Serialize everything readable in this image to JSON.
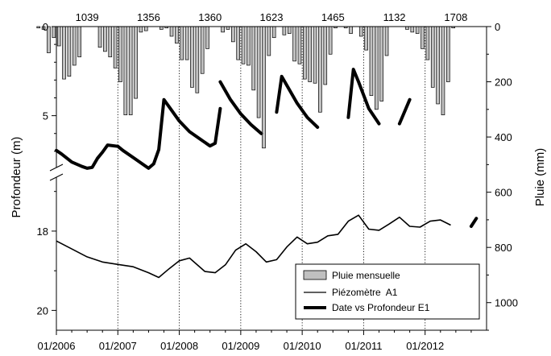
{
  "chart_data": {
    "type": "bar+line",
    "ylabel_left": "Profondeur (m)",
    "ylabel_right": "Pluie (mm)",
    "x_ticks": [
      "01/2006",
      "01/2007",
      "01/2008",
      "01/2009",
      "01/2010",
      "01/2011",
      "01/2012"
    ],
    "y_left_ticks_upper": [
      "0",
      "5"
    ],
    "y_left_ticks_lower": [
      "18",
      "20"
    ],
    "y_right_ticks": [
      "0",
      "200",
      "400",
      "600",
      "800",
      "1000"
    ],
    "y_left_range_upper": [
      0,
      8
    ],
    "y_left_range_lower": [
      16.6,
      20.5
    ],
    "y_right_range": [
      0,
      1100
    ],
    "annual_totals": [
      {
        "year": 2006,
        "value": "1039"
      },
      {
        "year": 2007,
        "value": "1356"
      },
      {
        "year": 2008,
        "value": "1360"
      },
      {
        "year": 2009,
        "value": "1623"
      },
      {
        "year": 2010,
        "value": "1465"
      },
      {
        "year": 2011,
        "value": "1132"
      },
      {
        "year": 2012,
        "value": "1708"
      }
    ],
    "series": [
      {
        "name": "Pluie mensuelle",
        "kind": "bar",
        "axis": "right",
        "color": "#c0c0c0",
        "x": [
          "2005-09",
          "2005-10",
          "2005-11",
          "2005-12",
          "2006-01",
          "2006-02",
          "2006-03",
          "2006-04",
          "2006-05",
          "2006-06",
          "2006-07",
          "2006-08",
          "2006-09",
          "2006-10",
          "2006-11",
          "2006-12",
          "2007-01",
          "2007-02",
          "2007-03",
          "2007-04",
          "2007-05",
          "2007-06",
          "2007-07",
          "2007-08",
          "2007-09",
          "2007-10",
          "2007-11",
          "2007-12",
          "2008-01",
          "2008-02",
          "2008-03",
          "2008-04",
          "2008-05",
          "2008-06",
          "2008-07",
          "2008-08",
          "2008-09",
          "2008-10",
          "2008-11",
          "2008-12",
          "2009-01",
          "2009-02",
          "2009-03",
          "2009-04",
          "2009-05",
          "2009-06",
          "2009-07",
          "2009-08",
          "2009-09",
          "2009-10",
          "2009-11",
          "2009-12",
          "2010-01",
          "2010-02",
          "2010-03",
          "2010-04",
          "2010-05",
          "2010-06",
          "2010-07",
          "2010-08",
          "2010-09",
          "2010-10",
          "2010-11",
          "2010-12",
          "2011-01",
          "2011-02",
          "2011-03",
          "2011-04",
          "2011-05",
          "2011-06",
          "2011-07",
          "2011-08",
          "2011-09",
          "2011-10",
          "2011-11",
          "2011-12",
          "2012-01",
          "2012-02",
          "2012-03",
          "2012-04",
          "2012-05",
          "2012-06",
          "2012-07",
          "2012-08"
        ],
        "values": [
          5,
          10,
          95,
          40,
          70,
          190,
          180,
          140,
          110,
          0,
          0,
          0,
          75,
          90,
          110,
          150,
          200,
          320,
          320,
          260,
          20,
          15,
          0,
          0,
          10,
          5,
          35,
          60,
          120,
          120,
          220,
          240,
          170,
          80,
          0,
          0,
          20,
          10,
          55,
          120,
          135,
          140,
          230,
          330,
          440,
          105,
          40,
          0,
          30,
          25,
          125,
          135,
          190,
          200,
          205,
          310,
          210,
          100,
          5,
          0,
          5,
          25,
          0,
          35,
          85,
          250,
          300,
          270,
          105,
          0,
          0,
          0,
          10,
          20,
          25,
          80,
          120,
          220,
          280,
          320,
          200,
          5,
          0,
          0
        ]
      },
      {
        "name": "Piézomètre  A1",
        "kind": "line",
        "axis": "left-lower",
        "color": "#000000",
        "x": [
          "2006-01",
          "2006-04",
          "2006-07",
          "2006-10",
          "2007-01",
          "2007-04",
          "2007-07",
          "2007-09",
          "2007-11",
          "2008-01",
          "2008-03",
          "2008-06",
          "2008-08",
          "2008-10",
          "2008-12",
          "2009-02",
          "2009-04",
          "2009-06",
          "2009-08",
          "2009-10",
          "2009-12",
          "2010-02",
          "2010-04",
          "2010-06",
          "2010-08",
          "2010-10",
          "2010-12",
          "2011-02",
          "2011-04",
          "2011-06",
          "2011-08",
          "2011-10",
          "2011-12",
          "2012-02",
          "2012-04",
          "2012-06"
        ],
        "values": [
          18.25,
          18.45,
          18.65,
          18.78,
          18.84,
          18.9,
          19.05,
          19.17,
          18.95,
          18.75,
          18.68,
          19.02,
          19.05,
          18.85,
          18.48,
          18.32,
          18.52,
          18.78,
          18.72,
          18.4,
          18.15,
          18.32,
          18.28,
          18.12,
          18.08,
          17.75,
          17.6,
          17.95,
          17.98,
          17.82,
          17.65,
          17.88,
          17.9,
          17.75,
          17.72,
          17.85
        ]
      },
      {
        "name": "Date vs Profondeur E1",
        "kind": "line",
        "axis": "left-upper",
        "color": "#000000",
        "segments": [
          {
            "x": [
              "2006-01",
              "2006-02",
              "2006-04",
              "2006-06",
              "2006-07",
              "2006-08",
              "2006-09",
              "2006-10",
              "2006-11",
              "2007-01",
              "2007-02",
              "2007-04",
              "2007-06",
              "2007-07",
              "2007-08",
              "2007-09",
              "2007-10",
              "2007-11",
              "2008-01",
              "2008-03",
              "2008-05",
              "2008-07",
              "2008-08",
              "2008-09"
            ],
            "values": [
              6.95,
              7.15,
              7.6,
              7.85,
              7.95,
              7.9,
              7.4,
              7.05,
              6.65,
              6.72,
              6.95,
              7.35,
              7.75,
              7.95,
              7.7,
              6.9,
              4.1,
              4.5,
              5.3,
              5.9,
              6.3,
              6.7,
              6.55,
              4.6
            ]
          },
          {
            "x": [
              "2008-09",
              "2008-11",
              "2009-01",
              "2009-03",
              "2009-05"
            ],
            "values": [
              3.1,
              4.1,
              4.9,
              5.5,
              6.0
            ]
          },
          {
            "x": [
              "2009-08",
              "2009-09",
              "2009-10",
              "2009-12",
              "2010-02",
              "2010-04"
            ],
            "values": [
              4.8,
              2.8,
              3.3,
              4.3,
              5.1,
              5.65
            ]
          },
          {
            "x": [
              "2010-10",
              "2010-11",
              "2010-12",
              "2011-02",
              "2011-04"
            ],
            "values": [
              5.1,
              2.4,
              3.1,
              4.6,
              5.45
            ]
          },
          {
            "x": [
              "2011-08",
              "2011-10"
            ],
            "values": [
              5.45,
              4.1
            ]
          },
          {
            "x": [
              "2012-10",
              "2012-11"
            ],
            "values": [
              17.88,
              17.68
            ],
            "axis": "left-lower"
          }
        ]
      }
    ],
    "legend_position": "bottom-right",
    "grid": "vertical dotted lines at year boundaries"
  }
}
